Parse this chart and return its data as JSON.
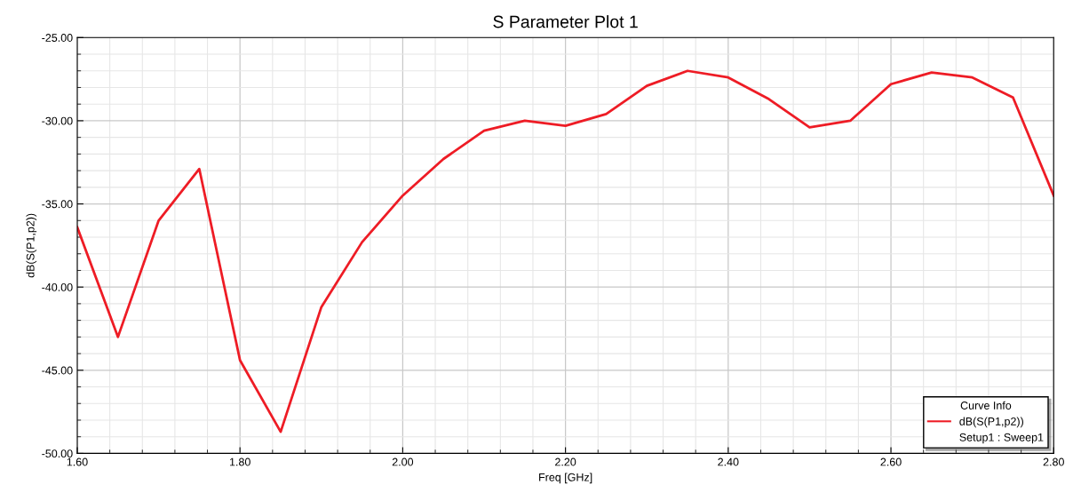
{
  "chart_data": {
    "type": "line",
    "title": "S Parameter Plot 1",
    "xlabel": "Freq [GHz]",
    "ylabel": "dB(S(P1,p2))",
    "legend_title": "Curve Info",
    "x": [
      1.6,
      1.65,
      1.7,
      1.75,
      1.8,
      1.85,
      1.9,
      1.95,
      2.0,
      2.05,
      2.1,
      2.15,
      2.2,
      2.25,
      2.3,
      2.35,
      2.4,
      2.45,
      2.5,
      2.55,
      2.6,
      2.65,
      2.7,
      2.75,
      2.8
    ],
    "series": [
      {
        "name": "dB(S(P1,p2))",
        "color": "#ee1c25",
        "values": [
          -36.4,
          -43.0,
          -36.0,
          -32.9,
          -44.4,
          -48.7,
          -41.2,
          -37.3,
          -34.5,
          -32.3,
          -30.6,
          -30.0,
          -30.3,
          -29.6,
          -27.9,
          -27.0,
          -27.4,
          -28.7,
          -30.4,
          -30.0,
          -27.8,
          -27.1,
          -27.4,
          -28.6,
          -34.5
        ]
      }
    ],
    "annotations": [
      "Setup1 : Sweep1"
    ],
    "xlim": [
      1.6,
      2.8
    ],
    "xticks": [
      {
        "value": 1.6,
        "label": "1.60"
      },
      {
        "value": 1.8,
        "label": "1.80"
      },
      {
        "value": 2.0,
        "label": "2.00"
      },
      {
        "value": 2.2,
        "label": "2.20"
      },
      {
        "value": 2.4,
        "label": "2.40"
      },
      {
        "value": 2.6,
        "label": "2.60"
      },
      {
        "value": 2.8,
        "label": "2.80"
      }
    ],
    "ylim": [
      -50,
      -25
    ],
    "yticks": [
      {
        "value": -50,
        "label": "-50.00"
      },
      {
        "value": -45,
        "label": "-45.00"
      },
      {
        "value": -40,
        "label": "-40.00"
      },
      {
        "value": -35,
        "label": "-35.00"
      },
      {
        "value": -30,
        "label": "-30.00"
      },
      {
        "value": -25,
        "label": "-25.00"
      }
    ],
    "grid": true,
    "legend": "bottom right",
    "line_style": "solid",
    "marker": "none"
  }
}
